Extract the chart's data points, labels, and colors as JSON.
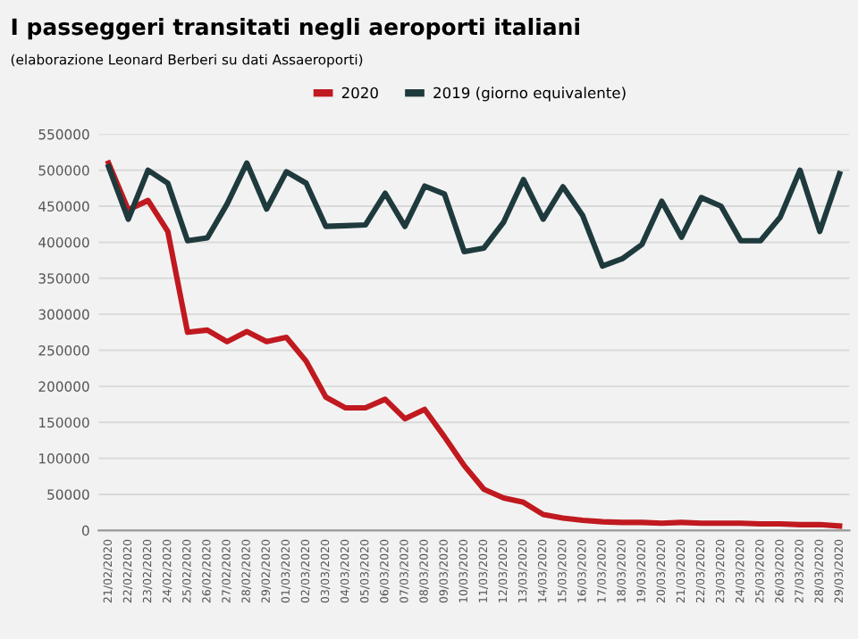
{
  "chart_data": {
    "type": "line",
    "title": "I passeggeri transitati negli aeroporti italiani",
    "subtitle": "(elaborazione Leonard Berberi su dati Assaeroporti)",
    "categories": [
      "21/02/2020",
      "22/02/2020",
      "23/02/2020",
      "24/02/2020",
      "25/02/2020",
      "26/02/2020",
      "27/02/2020",
      "28/02/2020",
      "29/02/2020",
      "01/03/2020",
      "02/03/2020",
      "03/03/2020",
      "04/03/2020",
      "05/03/2020",
      "06/03/2020",
      "07/03/2020",
      "08/03/2020",
      "09/03/2020",
      "10/03/2020",
      "11/03/2020",
      "12/03/2020",
      "13/03/2020",
      "14/03/2020",
      "15/03/2020",
      "16/03/2020",
      "17/03/2020",
      "18/03/2020",
      "19/03/2020",
      "20/03/2020",
      "21/03/2020",
      "22/03/2020",
      "23/03/2020",
      "24/03/2020",
      "25/03/2020",
      "26/03/2020",
      "27/03/2020",
      "28/03/2020",
      "29/03/2020"
    ],
    "series": [
      {
        "name": "2020",
        "color": "#c0191f",
        "values": [
          510000,
          445000,
          458000,
          415000,
          275000,
          278000,
          262000,
          276000,
          262000,
          268000,
          235000,
          185000,
          170000,
          170000,
          182000,
          155000,
          168000,
          130000,
          90000,
          57000,
          45000,
          39000,
          22000,
          17000,
          14000,
          12000,
          11000,
          11000,
          10000,
          11000,
          10000,
          10000,
          10000,
          9000,
          9000,
          8000,
          8000,
          6000
        ]
      },
      {
        "name": "2019 (giorno equivalente)",
        "color": "#1f3a3d",
        "values": [
          505000,
          432000,
          500000,
          482000,
          402000,
          406000,
          453000,
          510000,
          446000,
          498000,
          482000,
          422000,
          423000,
          424000,
          468000,
          422000,
          478000,
          467000,
          387000,
          392000,
          428000,
          487000,
          432000,
          477000,
          437000,
          367000,
          377000,
          397000,
          457000,
          407000,
          462000,
          450000,
          402000,
          402000,
          435000,
          500000,
          415000,
          495000
        ]
      }
    ],
    "ylim": [
      0,
      550000
    ],
    "yticks": [
      0,
      50000,
      100000,
      150000,
      200000,
      250000,
      300000,
      350000,
      400000,
      450000,
      500000,
      550000
    ],
    "grid": "y",
    "legend": "top",
    "marker": "none",
    "line_style": "solid"
  }
}
